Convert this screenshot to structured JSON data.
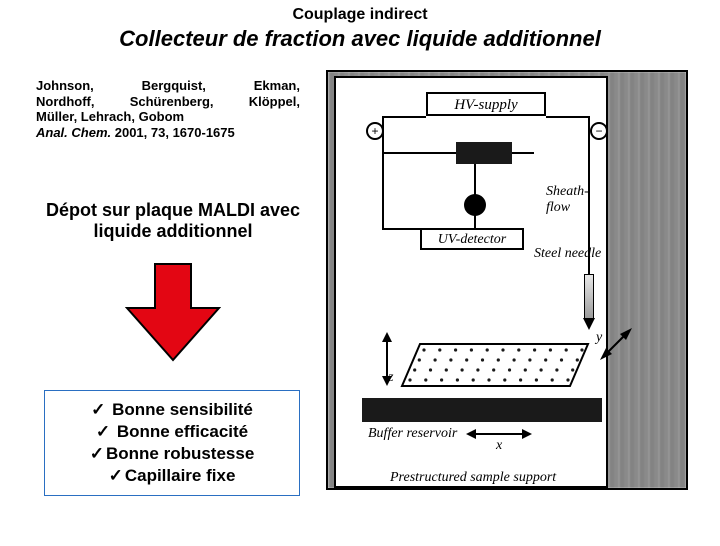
{
  "header": {
    "supertitle": "Couplage indirect",
    "title": "Collecteur de fraction avec liquide additionnel",
    "supertitle_fontsize": 16,
    "title_fontsize": 22
  },
  "citation": {
    "line1a": "Johnson,",
    "line1b": "Bergquist,",
    "line1c": "Ekman,",
    "line2a": "Nordhoff,",
    "line2b": "Schürenberg,",
    "line2c": "Klöppel,",
    "line3": "Müller, Lehrach, Gobom",
    "line4_prefix": "Anal. Chem.",
    "line4_rest": " 2001, 73, 1670-1675",
    "fontsize": 13
  },
  "subtitle": {
    "line1": "Dépot sur plaque MALDI avec",
    "line2": "liquide additionnel",
    "fontsize": 18
  },
  "arrow": {
    "fill": "#e30613",
    "stroke": "#000000",
    "width": 96,
    "height": 100
  },
  "bullets": {
    "border_color": "#2a6fc2",
    "check_glyph": "✓",
    "items": [
      "Bonne sensibilité",
      "Bonne efficacité",
      "Bonne robustesse",
      "Capillaire fixe"
    ],
    "item_gap_narrow_index": [
      2,
      3
    ],
    "fontsize": 17
  },
  "diagram": {
    "frame_width": 362,
    "frame_height": 420,
    "labels": {
      "hv": "HV-supply",
      "plus": "+",
      "minus": "−",
      "uv": "UV-detector",
      "sheath": "Sheath-flow",
      "needle": "Steel needle",
      "z": "z",
      "y": "y",
      "x": "x",
      "buffer": "Buffer reservoir",
      "prestruct": "Prestructured sample support"
    },
    "label_fontsize": 15,
    "plate": {
      "rows": 4,
      "cols": 11,
      "dot_color": "#1a1a1a"
    },
    "colors": {
      "line": "#000000",
      "frame_bg": "#ffffff",
      "photo_tint": "#7a7a7a"
    }
  }
}
